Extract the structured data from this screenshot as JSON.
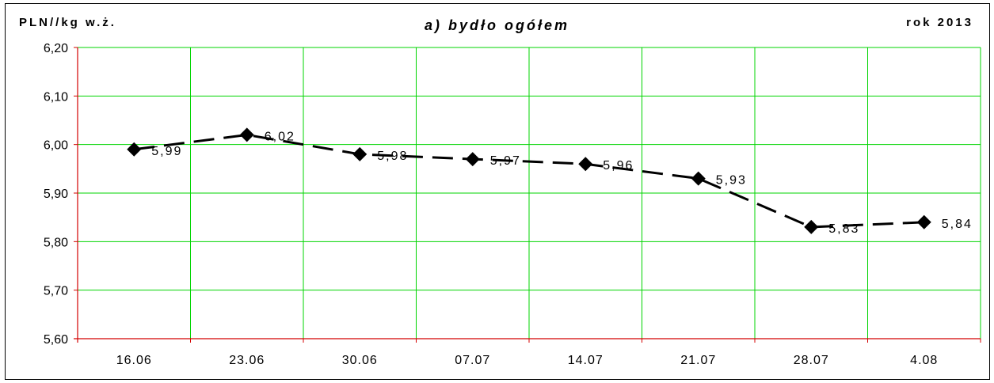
{
  "header": {
    "unit": "PLN//kg w.ż.",
    "title": "a) bydło ogółem",
    "year": "rok 2013"
  },
  "colors": {
    "grid": "#00d400",
    "axis": "#d40000",
    "line": "#000000"
  },
  "chart_data": {
    "type": "line",
    "title": "a) bydło ogółem",
    "ylabel": "PLN//kg w.ż.",
    "xlabel": "",
    "categories": [
      "16.06",
      "23.06",
      "30.06",
      "07.07",
      "14.07",
      "21.07",
      "28.07",
      "4.08"
    ],
    "series": [
      {
        "values": [
          5.99,
          6.02,
          5.98,
          5.97,
          5.96,
          5.93,
          5.83,
          5.84
        ],
        "labels": [
          "5,99",
          "6,02",
          "5,98",
          "5,97",
          "5,96",
          "5,93",
          "5,83",
          "5,84"
        ]
      }
    ],
    "ylim": [
      5.6,
      6.2
    ],
    "yticks": [
      "5,60",
      "5,70",
      "5,80",
      "5,90",
      "6,00",
      "6,10",
      "6,20"
    ],
    "grid": true,
    "line_style": "dashed",
    "marker": "diamond"
  }
}
